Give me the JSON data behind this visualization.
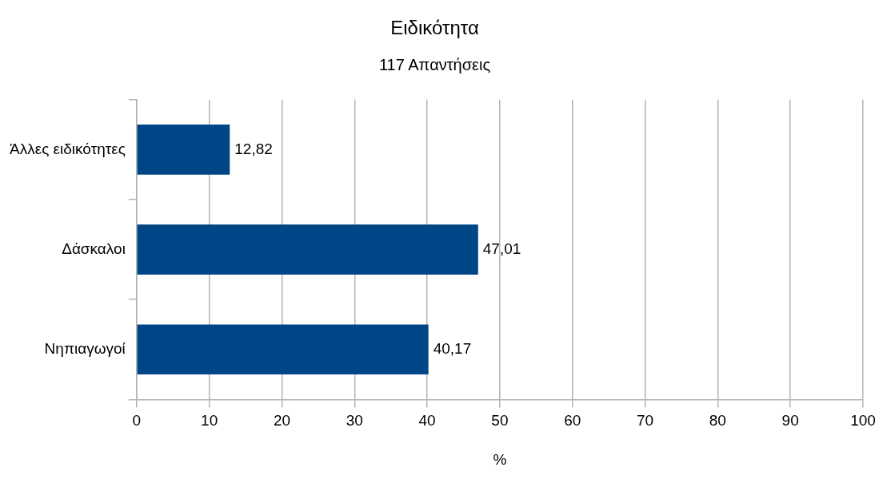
{
  "chart_data": {
    "type": "bar",
    "orientation": "horizontal",
    "title": "Ειδικότητα",
    "subtitle": "117 Απαντήσεις",
    "xlabel": "%",
    "categories": [
      "Άλλες ειδικότητες",
      "Δάσκαλοι",
      "Νηπιαγωγοί"
    ],
    "values": [
      12.82,
      47.01,
      40.17
    ],
    "value_labels": [
      "12,82",
      "47,01",
      "40,17"
    ],
    "color": "#004586",
    "xlim": [
      0,
      100
    ],
    "xticks": [
      0,
      10,
      20,
      30,
      40,
      50,
      60,
      70,
      80,
      90,
      100
    ],
    "grid": "x",
    "legend": false
  }
}
